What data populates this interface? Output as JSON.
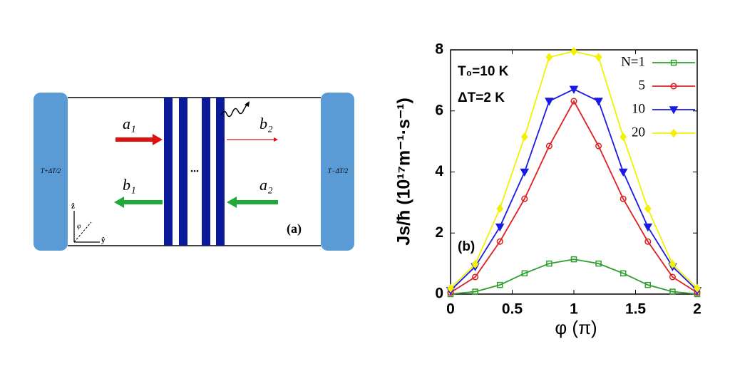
{
  "diagram": {
    "left_reservoir": "T+ΔT/2",
    "right_reservoir": "T−ΔT/2",
    "incoming_left": "a₁",
    "outgoing_right": "b₂",
    "outgoing_left": "b₁",
    "incoming_right": "a₂",
    "ellipsis": "...",
    "axis_z": "ẑ",
    "axis_y": "ŷ",
    "axis_angle": "φ",
    "panel_label": "(a)"
  },
  "chart_data": {
    "type": "line",
    "xlabel": "φ (π)",
    "ylabel": "Js/ħ  (10¹⁷m⁻¹·s⁻¹)",
    "annotations": [
      "T₀=10 K",
      "ΔT=2 K",
      "(b)"
    ],
    "x": [
      0,
      0.2,
      0.4,
      0.6,
      0.8,
      1.0,
      1.2,
      1.4,
      1.6,
      1.8,
      2.0
    ],
    "series": [
      {
        "name": "N=1",
        "color": "#2e9e2e",
        "marker": "square",
        "values": [
          0,
          0.08,
          0.3,
          0.68,
          1.0,
          1.14,
          1.0,
          0.68,
          0.3,
          0.08,
          0
        ]
      },
      {
        "name": "5",
        "color": "#e02020",
        "marker": "circle",
        "values": [
          0.05,
          0.56,
          1.72,
          3.12,
          4.85,
          6.32,
          4.85,
          3.12,
          1.72,
          0.56,
          0.05
        ]
      },
      {
        "name": "10",
        "color": "#1a1ae6",
        "marker": "triangle-down",
        "values": [
          0.12,
          0.9,
          2.2,
          4.0,
          6.32,
          6.71,
          6.32,
          4.0,
          2.2,
          0.9,
          0.12
        ]
      },
      {
        "name": "20",
        "color": "#f2f200",
        "marker": "diamond",
        "values": [
          0.19,
          0.98,
          2.8,
          5.15,
          7.76,
          7.95,
          7.76,
          5.15,
          2.8,
          0.98,
          0.19
        ]
      }
    ],
    "xlim": [
      0,
      2
    ],
    "xticks": [
      0,
      0.5,
      1,
      1.5,
      2
    ],
    "ylim": [
      0,
      8
    ],
    "yticks": [
      0,
      2,
      4,
      6,
      8
    ]
  }
}
